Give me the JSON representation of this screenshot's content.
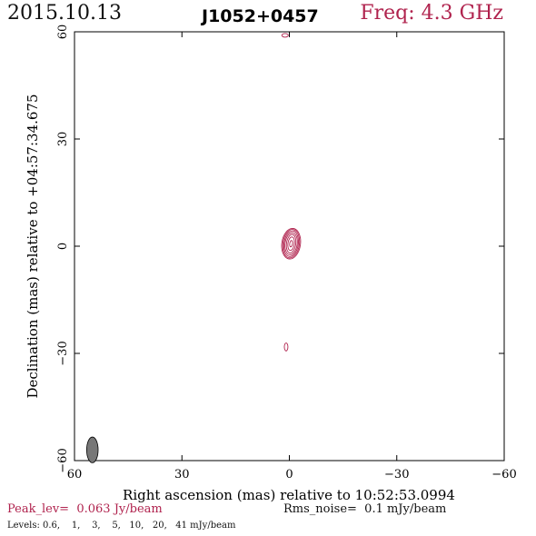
{
  "header": {
    "date": "2015.10.13",
    "source": "J1052+0457",
    "frequency": "Freq: 4.3 GHz"
  },
  "footer": {
    "peak_label": "Peak_lev=",
    "peak_value": "0.063 Jy/beam",
    "rms_label": "Rms_noise=",
    "rms_value": "0.1 mJy/beam",
    "levels_label": "Levels:",
    "levels_values": "0.6,    1,    3,    5,   10,   20,   41 mJy/beam"
  },
  "colors": {
    "contour": "#b0234e",
    "beam": "#777777",
    "axis": "#000000"
  },
  "chart_data": {
    "type": "contour",
    "xlabel": "Right ascension (mas) relative to 10:52:53.0994",
    "ylabel": "Declination (mas) relative to +04:57:34.675",
    "xlim": [
      60,
      -60
    ],
    "ylim": [
      -60,
      60
    ],
    "xticks": [
      60,
      30,
      0,
      -30,
      -60
    ],
    "yticks": [
      -60,
      -30,
      0,
      30,
      60
    ],
    "xtick_labels": [
      "60",
      "30",
      "0",
      "−30",
      "−60"
    ],
    "ytick_labels": [
      "−60",
      "−30",
      "0",
      "30",
      "60"
    ],
    "grid": false,
    "levels_mJy": [
      0.6,
      1,
      3,
      5,
      10,
      20,
      41
    ],
    "core": {
      "x": -0.5,
      "y": 0.7,
      "contours": [
        {
          "level": 0.6,
          "a": 2.6,
          "b": 4.3
        },
        {
          "level": 1,
          "a": 2.3,
          "b": 4.0
        },
        {
          "level": 3,
          "a": 2.0,
          "b": 3.6
        },
        {
          "level": 5,
          "a": 1.7,
          "b": 3.1
        },
        {
          "level": 10,
          "a": 1.3,
          "b": 2.6
        },
        {
          "level": 20,
          "a": 0.9,
          "b": 1.9
        },
        {
          "level": 41,
          "a": 0.4,
          "b": 0.9
        }
      ]
    },
    "minor_components": [
      {
        "x": 0.9,
        "y": -28.2,
        "a": 0.5,
        "b": 1.1
      },
      {
        "x": 1.2,
        "y": 59.0,
        "a": 0.9,
        "b": 0.5
      }
    ],
    "beam": {
      "x": 55,
      "y": -57,
      "a": 0.8,
      "b": 1.8
    }
  }
}
